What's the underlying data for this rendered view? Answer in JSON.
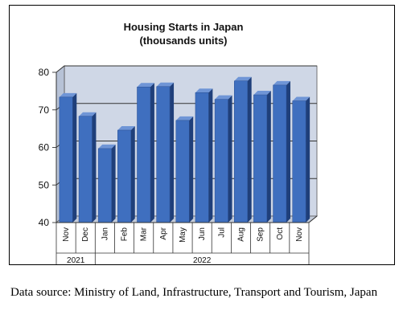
{
  "chart_data": {
    "type": "bar",
    "title": "Housing Starts in Japan",
    "subtitle": "(thousands units)",
    "categories": [
      "Nov",
      "Dec",
      "Jan",
      "Feb",
      "Mar",
      "Apr",
      "May",
      "Jun",
      "Jul",
      "Aug",
      "Sep",
      "Oct",
      "Nov"
    ],
    "year_groups": [
      {
        "label": "2021",
        "count": 2
      },
      {
        "label": "2022",
        "count": 11
      }
    ],
    "values": [
      73.4,
      68.3,
      59.7,
      64.6,
      76.1,
      76.2,
      67.2,
      74.6,
      72.8,
      77.7,
      74.0,
      76.6,
      72.4
    ],
    "ylim": [
      40,
      80
    ],
    "yticks": [
      40,
      50,
      60,
      70,
      80
    ],
    "grid": true,
    "legend": "none",
    "bar_color": "#3f6fbf",
    "plot_background": "#cfd7e6"
  },
  "source_note": "Data source: Ministry of Land, Infrastructure, Transport and Tourism, Japan"
}
